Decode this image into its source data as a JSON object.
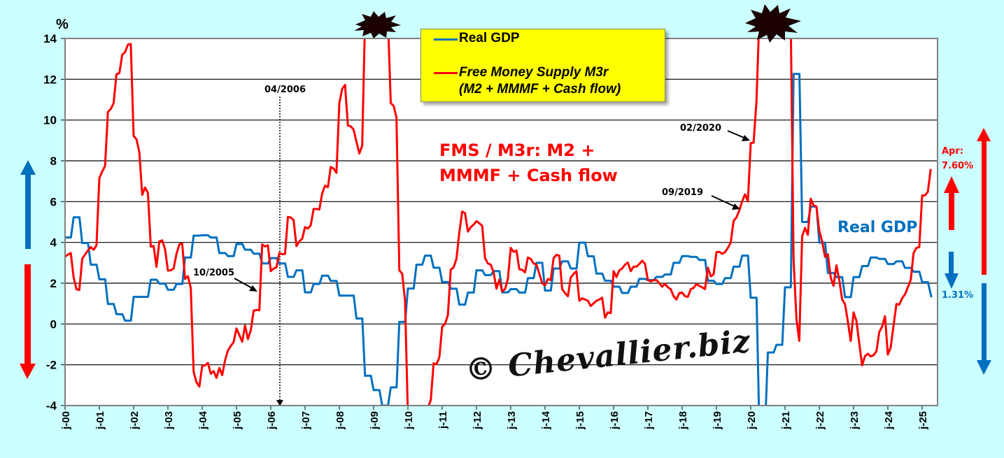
{
  "chart_data": {
    "type": "line",
    "ylabel": "%",
    "ylim": [
      -4,
      14
    ],
    "yticks": [
      "14",
      "12",
      "10",
      "8",
      "6",
      "4",
      "2",
      "0",
      "-2",
      "-4"
    ],
    "xlim": [
      "2000-01",
      "2025-06"
    ],
    "xticks": [
      "j-00",
      "j-01",
      "j-02",
      "j-03",
      "j-04",
      "j-05",
      "j-06",
      "j-07",
      "j-08",
      "j-09",
      "j-10",
      "j-11",
      "j-12",
      "j-13",
      "j-14",
      "j-15",
      "j-16",
      "j-17",
      "j-18",
      "j-19",
      "j-20",
      "j-21",
      "j-22",
      "j-23",
      "j-24",
      "j-25"
    ],
    "grid": true,
    "legend_position": "top-center",
    "series": [
      {
        "name": "Real GDP",
        "color": "#0070C0",
        "frequency": "quarterly",
        "values_by_year": {
          "2000": [
            4.24,
            5.23,
            3.97,
            2.91
          ],
          "2001": [
            2.19,
            0.98,
            0.48,
            0.16
          ],
          "2002": [
            1.33,
            1.33,
            2.17,
            1.98
          ],
          "2003": [
            1.68,
            1.96,
            3.26,
            4.33
          ],
          "2004": [
            4.35,
            4.24,
            3.48,
            3.33
          ],
          "2005": [
            3.92,
            3.64,
            3.45,
            2.97
          ],
          "2006": [
            3.23,
            2.97,
            2.31,
            2.63
          ],
          "2007": [
            1.55,
            1.96,
            2.37,
            2.11
          ],
          "2008": [
            1.39,
            1.39,
            0.27,
            -2.54
          ],
          "2009": [
            -3.24,
            -4.0,
            -3.11,
            0.1
          ],
          "2010": [
            1.74,
            2.91,
            3.35,
            2.76
          ],
          "2011": [
            2.06,
            1.73,
            0.95,
            1.54
          ],
          "2012": [
            2.63,
            2.4,
            2.59,
            1.55
          ],
          "2013": [
            1.71,
            1.54,
            2.25,
            3.0
          ],
          "2014": [
            1.64,
            2.72,
            3.07,
            2.72
          ],
          "2015": [
            3.99,
            3.32,
            2.47,
            2.12
          ],
          "2016": [
            1.83,
            1.52,
            1.83,
            2.21
          ],
          "2017": [
            2.15,
            2.31,
            2.43,
            3.0
          ],
          "2018": [
            3.33,
            3.29,
            3.14,
            2.12
          ],
          "2019": [
            1.96,
            2.25,
            2.81,
            3.35
          ],
          "2020": [
            1.29,
            -5.0,
            -1.4,
            -1.02
          ],
          "2021": [
            1.8,
            12.26,
            5.0,
            5.76
          ],
          "2022": [
            3.99,
            2.5,
            2.3,
            1.32
          ],
          "2023": [
            2.3,
            2.84,
            3.26,
            3.19
          ],
          "2024": [
            2.94,
            3.07,
            2.75,
            2.56
          ],
          "2025": [
            2.05,
            1.31
          ]
        }
      },
      {
        "name": "Free Money Supply M3r (M2 + MMMF + Cash flow)",
        "color": "#FF0000",
        "frequency": "monthly",
        "values_by_year": {
          "2000": [
            3.3,
            3.4,
            3.48,
            2.28,
            1.7,
            1.67,
            3.2,
            3.4,
            3.6,
            3.77,
            3.64,
            3.86
          ],
          "2001": [
            7.16,
            7.47,
            7.75,
            10.4,
            10.54,
            10.83,
            12.25,
            12.3,
            13.2,
            13.33,
            13.7,
            13.73
          ],
          "2002": [
            9.22,
            9.06,
            8.42,
            6.33,
            6.69,
            6.43,
            3.8,
            3.82,
            2.8,
            4.05,
            4.1,
            3.67
          ],
          "2003": [
            2.62,
            2.63,
            2.72,
            3.44,
            3.9,
            3.95,
            2.21,
            2.34,
            1.77,
            -2.35,
            -2.86,
            -3.07
          ],
          "2004": [
            -2.06,
            -2.03,
            -1.91,
            -2.44,
            -2.31,
            -2.64,
            -2.16,
            -2.51,
            -1.78,
            -1.3,
            -1.08,
            -0.89
          ],
          "2005": [
            -0.22,
            -0.54,
            -0.87,
            -0.07,
            -0.74,
            -0.32,
            0.65,
            0.69,
            0.67,
            3.9,
            3.8,
            3.86
          ],
          "2006": [
            2.59,
            2.72,
            2.78,
            3.48,
            3.42,
            3.44,
            5.25,
            5.22,
            5.09,
            3.82,
            4.05,
            4.18
          ],
          "2007": [
            4.75,
            4.68,
            4.84,
            5.64,
            5.64,
            5.61,
            6.4,
            6.78,
            6.71,
            7.7,
            7.62,
            7.41
          ],
          "2008": [
            10.83,
            11.53,
            11.72,
            9.73,
            9.69,
            9.53,
            8.93,
            8.36,
            8.74,
            15,
            15,
            15
          ],
          "2009": [
            15,
            15,
            15,
            15,
            15,
            15,
            10.83,
            10.7,
            10.13,
            2.63,
            2.47,
            1.14
          ],
          "2010": [
            -4.5,
            -5,
            -5,
            -5,
            -5,
            -5,
            -5,
            -4.1,
            -3.74,
            -1.93,
            -1.97,
            -1.65
          ],
          "2011": [
            -0.13,
            0.0,
            0.44,
            2.66,
            2.78,
            3.19,
            4.49,
            5.51,
            5.44,
            4.53,
            4.75,
            4.87
          ],
          "2012": [
            5.04,
            4.94,
            4.81,
            3.23,
            2.97,
            2.91,
            2.53,
            1.73,
            2.17,
            1.6,
            1.71,
            2.21
          ],
          "2013": [
            3.73,
            3.54,
            3.6,
            2.68,
            2.66,
            2.53,
            3.26,
            3.19,
            2.97,
            2.91,
            2.47,
            2.0
          ],
          "2014": [
            1.9,
            2.21,
            2.15,
            3.23,
            3.39,
            3.35,
            1.71,
            1.52,
            1.36,
            2.28,
            2.45,
            2.59
          ],
          "2015": [
            1.14,
            1.26,
            1.2,
            1.14,
            0.88,
            1.01,
            1.14,
            1.2,
            1.29,
            0.31,
            0.57,
            0.53
          ],
          "2016": [
            2.59,
            2.3,
            2.63,
            2.72,
            2.91,
            3.01,
            2.59,
            2.81,
            2.81,
            2.94,
            3.1,
            2.95
          ],
          "2017": [
            2.15,
            2.09,
            2.15,
            2.15,
            2.0,
            1.83,
            1.96,
            1.8,
            1.71,
            1.36,
            1.2,
            1.52
          ],
          "2018": [
            1.54,
            1.36,
            1.33,
            1.71,
            1.77,
            1.96,
            1.87,
            1.8,
            1.71,
            2.76,
            2.34,
            2.43
          ],
          "2019": [
            3.52,
            3.54,
            3.44,
            3.52,
            3.73,
            3.99,
            5.06,
            5.22,
            5.57,
            6.01,
            6.36,
            6.01
          ],
          "2020": [
            8.87,
            8.89,
            10.9,
            15,
            15,
            15,
            15,
            15,
            15,
            15,
            15,
            15
          ],
          "2021": [
            15,
            15,
            15,
            3.16,
            0.25,
            -0.83,
            4.3,
            4.71,
            4.37,
            6.14,
            5.82,
            5.76
          ],
          "2022": [
            4.56,
            4.05,
            3.29,
            3.42,
            2.28,
            1.87,
            2.88,
            2.15,
            1.2,
            0.98,
            0.12,
            -0.83
          ],
          "2023": [
            0.57,
            0.15,
            -0.96,
            -2.03,
            -1.57,
            -1.46,
            -1.59,
            -1.53,
            -1.34,
            -0.39,
            -0.13,
            0.38
          ],
          "2024": [
            -1.5,
            -1.15,
            -0.07,
            0.98,
            0.95,
            1.26,
            1.45,
            1.8,
            2.15,
            3.48,
            3.73,
            3.77
          ],
          "2025": [
            6.3,
            6.3,
            6.48,
            7.6
          ]
        }
      }
    ],
    "legend": {
      "gdp_label": "Real GDP",
      "fms_label_line1": "Free Money Supply M3r",
      "fms_label_line2": "(M2 + MMMF + Cash flow)"
    },
    "annotations": {
      "date_2006": "04/2006",
      "date_2005": "10/2005",
      "date_2020": "02/2020",
      "date_2019": "09/2019",
      "fms_title_line1": "FMS / M3r: M2 +",
      "fms_title_line2": "MMMF + Cash flow",
      "gdp_title": "Real GDP",
      "fms_last_month": "Apr:",
      "fms_last_value": "7.60%",
      "gdp_last_value": "1.31%",
      "watermark": "© Chevallier.biz"
    }
  }
}
